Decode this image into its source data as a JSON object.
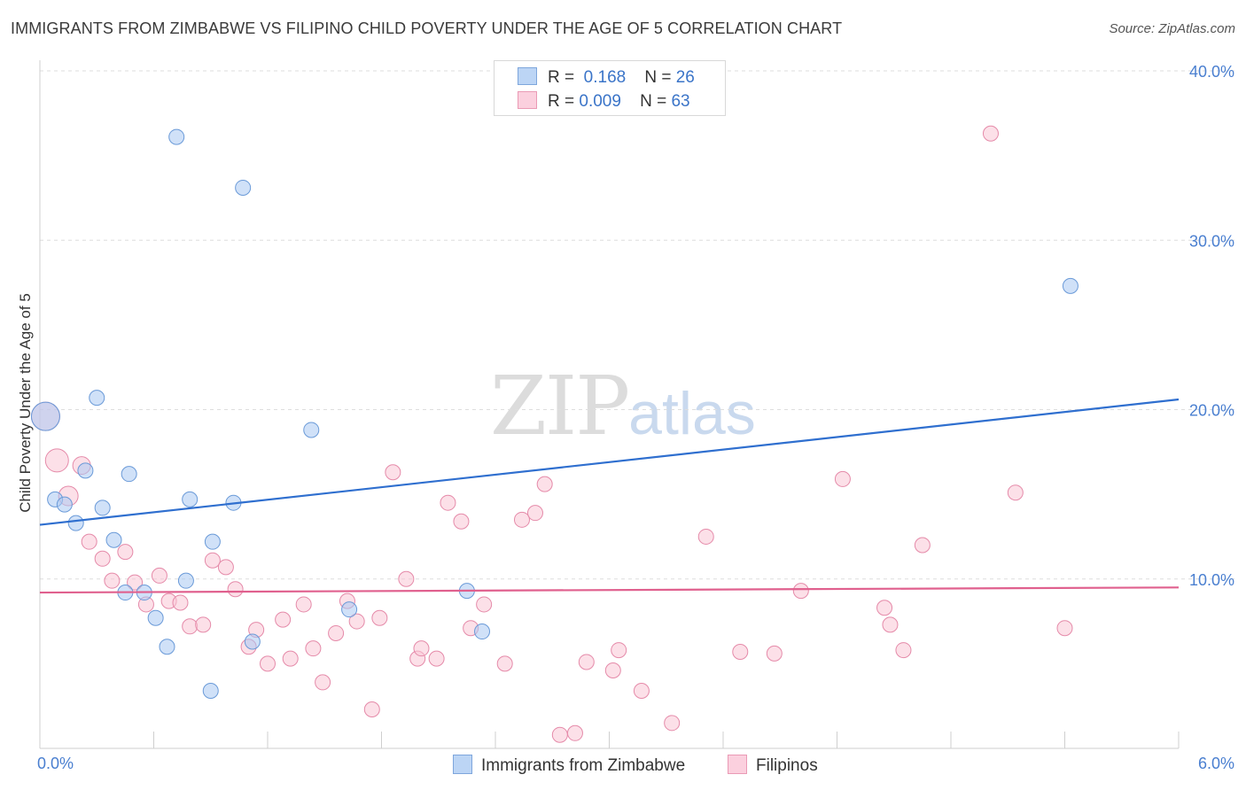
{
  "chart_data": {
    "type": "scatter",
    "title": "IMMIGRANTS FROM ZIMBABWE VS FILIPINO CHILD POVERTY UNDER THE AGE OF 5 CORRELATION CHART",
    "source": "Source: ZipAtlas.com",
    "xlabel": "",
    "ylabel": "Child Poverty Under the Age of 5",
    "xlim": [
      0,
      6
    ],
    "ylim": [
      0,
      40
    ],
    "x_tick_labels": {
      "min": "0.0%",
      "max": "6.0%"
    },
    "y_ticks": [
      {
        "value": 10,
        "label": "10.0%"
      },
      {
        "value": 20,
        "label": "20.0%"
      },
      {
        "value": 30,
        "label": "30.0%"
      },
      {
        "value": 40,
        "label": "40.0%"
      }
    ],
    "grid": true,
    "watermark": {
      "zip": "ZIP",
      "atlas": "atlas"
    },
    "legend": [
      {
        "name": "Immigrants from Zimbabwe",
        "r_label": "R =",
        "r_value": "0.168",
        "n_label": "N =",
        "n_value": "26"
      },
      {
        "name": "Filipinos",
        "r_label": "R =",
        "r_value": "0.009",
        "n_label": "N =",
        "n_value": "63"
      }
    ],
    "series": [
      {
        "name": "Immigrants from Zimbabwe",
        "color": "#a9c9f2",
        "stroke": "#6a9ad8",
        "line_color": "#2f6fcf",
        "trend": {
          "x": [
            0,
            6
          ],
          "y": [
            13.2,
            20.6
          ]
        },
        "points": [
          {
            "x": 0.03,
            "y": 19.6,
            "r": 16
          },
          {
            "x": 0.08,
            "y": 14.7
          },
          {
            "x": 0.13,
            "y": 14.4
          },
          {
            "x": 0.19,
            "y": 13.3
          },
          {
            "x": 0.24,
            "y": 16.4
          },
          {
            "x": 0.3,
            "y": 20.7
          },
          {
            "x": 0.33,
            "y": 14.2
          },
          {
            "x": 0.39,
            "y": 12.3
          },
          {
            "x": 0.45,
            "y": 9.2
          },
          {
            "x": 0.47,
            "y": 16.2
          },
          {
            "x": 0.55,
            "y": 9.2
          },
          {
            "x": 0.61,
            "y": 7.7
          },
          {
            "x": 0.67,
            "y": 6.0
          },
          {
            "x": 0.72,
            "y": 36.1
          },
          {
            "x": 0.77,
            "y": 9.9
          },
          {
            "x": 0.79,
            "y": 14.7
          },
          {
            "x": 0.9,
            "y": 3.4
          },
          {
            "x": 0.91,
            "y": 12.2
          },
          {
            "x": 1.02,
            "y": 14.5
          },
          {
            "x": 1.07,
            "y": 33.1
          },
          {
            "x": 1.12,
            "y": 6.3
          },
          {
            "x": 1.43,
            "y": 18.8
          },
          {
            "x": 1.63,
            "y": 8.2
          },
          {
            "x": 2.25,
            "y": 9.3
          },
          {
            "x": 2.33,
            "y": 6.9
          },
          {
            "x": 5.43,
            "y": 27.3
          }
        ]
      },
      {
        "name": "Filipinos",
        "color": "#f9c6d6",
        "stroke": "#e58aa9",
        "line_color": "#e0608e",
        "trend": {
          "x": [
            0,
            6
          ],
          "y": [
            9.2,
            9.5
          ]
        },
        "points": [
          {
            "x": 0.03,
            "y": 19.6,
            "r": 16
          },
          {
            "x": 0.09,
            "y": 17.0,
            "r": 13
          },
          {
            "x": 0.15,
            "y": 14.9,
            "r": 11
          },
          {
            "x": 0.22,
            "y": 16.7,
            "r": 10
          },
          {
            "x": 0.26,
            "y": 12.2
          },
          {
            "x": 0.33,
            "y": 11.2
          },
          {
            "x": 0.38,
            "y": 9.9
          },
          {
            "x": 0.45,
            "y": 11.6
          },
          {
            "x": 0.5,
            "y": 9.8
          },
          {
            "x": 0.56,
            "y": 8.5
          },
          {
            "x": 0.63,
            "y": 10.2
          },
          {
            "x": 0.68,
            "y": 8.7
          },
          {
            "x": 0.74,
            "y": 8.6
          },
          {
            "x": 0.79,
            "y": 7.2
          },
          {
            "x": 0.86,
            "y": 7.3
          },
          {
            "x": 0.91,
            "y": 11.1
          },
          {
            "x": 0.98,
            "y": 10.7
          },
          {
            "x": 1.03,
            "y": 9.4
          },
          {
            "x": 1.1,
            "y": 6.0
          },
          {
            "x": 1.14,
            "y": 7.0
          },
          {
            "x": 1.2,
            "y": 5.0
          },
          {
            "x": 1.28,
            "y": 7.6
          },
          {
            "x": 1.32,
            "y": 5.3
          },
          {
            "x": 1.39,
            "y": 8.5
          },
          {
            "x": 1.44,
            "y": 5.9
          },
          {
            "x": 1.49,
            "y": 3.9
          },
          {
            "x": 1.56,
            "y": 6.8
          },
          {
            "x": 1.62,
            "y": 8.7
          },
          {
            "x": 1.67,
            "y": 7.5
          },
          {
            "x": 1.75,
            "y": 2.3
          },
          {
            "x": 1.79,
            "y": 7.7
          },
          {
            "x": 1.86,
            "y": 16.3
          },
          {
            "x": 1.93,
            "y": 10.0
          },
          {
            "x": 1.99,
            "y": 5.3
          },
          {
            "x": 2.01,
            "y": 5.9
          },
          {
            "x": 2.09,
            "y": 5.3
          },
          {
            "x": 2.15,
            "y": 14.5
          },
          {
            "x": 2.22,
            "y": 13.4
          },
          {
            "x": 2.27,
            "y": 7.1
          },
          {
            "x": 2.34,
            "y": 8.5
          },
          {
            "x": 2.45,
            "y": 5.0
          },
          {
            "x": 2.54,
            "y": 13.5
          },
          {
            "x": 2.61,
            "y": 13.9
          },
          {
            "x": 2.66,
            "y": 15.6
          },
          {
            "x": 2.74,
            "y": 0.8
          },
          {
            "x": 2.82,
            "y": 0.9
          },
          {
            "x": 2.88,
            "y": 5.1
          },
          {
            "x": 3.02,
            "y": 4.6
          },
          {
            "x": 3.05,
            "y": 5.8
          },
          {
            "x": 3.17,
            "y": 3.4
          },
          {
            "x": 3.33,
            "y": 1.5
          },
          {
            "x": 3.51,
            "y": 12.5
          },
          {
            "x": 3.69,
            "y": 5.7
          },
          {
            "x": 3.87,
            "y": 5.6
          },
          {
            "x": 4.01,
            "y": 9.3
          },
          {
            "x": 4.23,
            "y": 15.9
          },
          {
            "x": 4.45,
            "y": 8.3
          },
          {
            "x": 4.48,
            "y": 7.3
          },
          {
            "x": 4.55,
            "y": 5.8
          },
          {
            "x": 4.65,
            "y": 12.0
          },
          {
            "x": 5.01,
            "y": 36.3
          },
          {
            "x": 5.14,
            "y": 15.1
          },
          {
            "x": 5.4,
            "y": 7.1
          }
        ]
      }
    ]
  }
}
